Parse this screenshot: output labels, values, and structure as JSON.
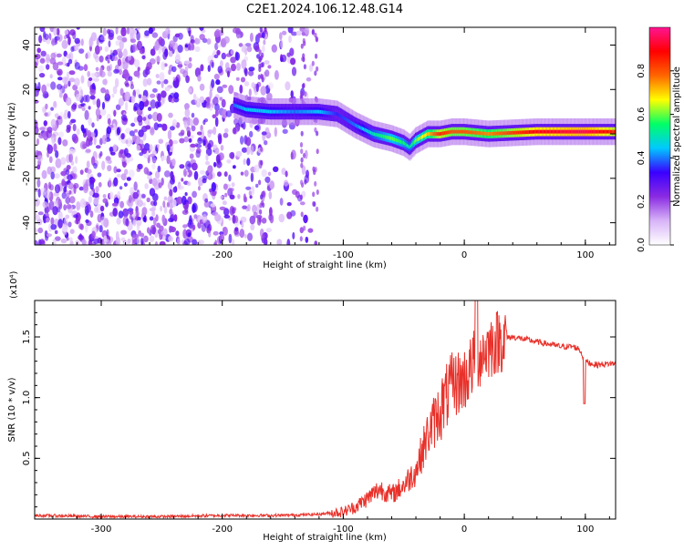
{
  "title": "C2E1.2024.106.12.48.G14",
  "chart_data": [
    {
      "type": "heatmap",
      "xlabel": "Height of straight line (km)",
      "ylabel": "Frequency (Hz)",
      "xlim": [
        -355,
        125
      ],
      "ylim": [
        -50,
        48
      ],
      "x_ticks": [
        -300,
        -200,
        -100,
        0,
        100
      ],
      "x_tick_labels": [
        "-300",
        "-200",
        "-100",
        "0",
        "100"
      ],
      "y_ticks": [
        -40,
        -20,
        0,
        20,
        40
      ],
      "y_tick_labels": [
        "-40",
        "-20",
        "0",
        "20",
        "40"
      ],
      "colorbar": {
        "label": "Normalized spectral amplitude",
        "range": [
          0,
          1
        ],
        "ticks": [
          0.0,
          0.2,
          0.4,
          0.6,
          0.8
        ],
        "tick_labels": [
          "0.0",
          "0.2",
          "0.4",
          "0.6",
          "0.8"
        ],
        "stops": [
          "#ffffff",
          "#d8b4f8",
          "#8a2be2",
          "#3a00ff",
          "#00c8ff",
          "#00ff66",
          "#ffff00",
          "#ff6600",
          "#ff0000",
          "#ff1493"
        ]
      },
      "ridge": {
        "x": [
          -190,
          -180,
          -160,
          -140,
          -120,
          -105,
          -90,
          -75,
          -60,
          -50,
          -45,
          -40,
          -30,
          -20,
          -10,
          0,
          20,
          60,
          100,
          125
        ],
        "freq": [
          13,
          11,
          10,
          10,
          10,
          9,
          4,
          0,
          -2,
          -4,
          -6,
          -3,
          0,
          0,
          1,
          1,
          0,
          1,
          1,
          1
        ],
        "amplitude": [
          0.4,
          0.45,
          0.45,
          0.4,
          0.45,
          0.35,
          0.4,
          0.5,
          0.6,
          0.55,
          0.5,
          0.6,
          0.7,
          0.85,
          0.8,
          0.8,
          0.75,
          0.9,
          0.95,
          0.85
        ]
      }
    },
    {
      "type": "line",
      "xlabel": "Height of straight line (km)",
      "ylabel": "SNR (10 * v/v)",
      "y_multiplier": "(x10⁴)",
      "xlim": [
        -355,
        125
      ],
      "ylim": [
        0,
        1.8
      ],
      "x_ticks": [
        -300,
        -200,
        -100,
        0,
        100
      ],
      "x_tick_labels": [
        "-300",
        "-200",
        "-100",
        "0",
        "100"
      ],
      "y_ticks": [
        0.5,
        1.0,
        1.5
      ],
      "y_tick_labels": [
        "0.5",
        "1.0",
        "1.5"
      ],
      "color": "#e8312a",
      "x": [
        -355,
        -300,
        -250,
        -200,
        -150,
        -120,
        -100,
        -90,
        -80,
        -70,
        -60,
        -50,
        -40,
        -30,
        -20,
        -10,
        0,
        10,
        20,
        30,
        40,
        50,
        60,
        70,
        80,
        90,
        95,
        100,
        105,
        110,
        120,
        125
      ],
      "y": [
        0.03,
        0.02,
        0.02,
        0.03,
        0.03,
        0.04,
        0.06,
        0.1,
        0.17,
        0.25,
        0.2,
        0.28,
        0.4,
        0.7,
        0.9,
        1.1,
        1.15,
        1.32,
        1.42,
        1.48,
        1.5,
        1.48,
        1.46,
        1.44,
        1.42,
        1.42,
        1.4,
        1.3,
        1.28,
        1.27,
        1.28,
        1.28
      ]
    }
  ]
}
